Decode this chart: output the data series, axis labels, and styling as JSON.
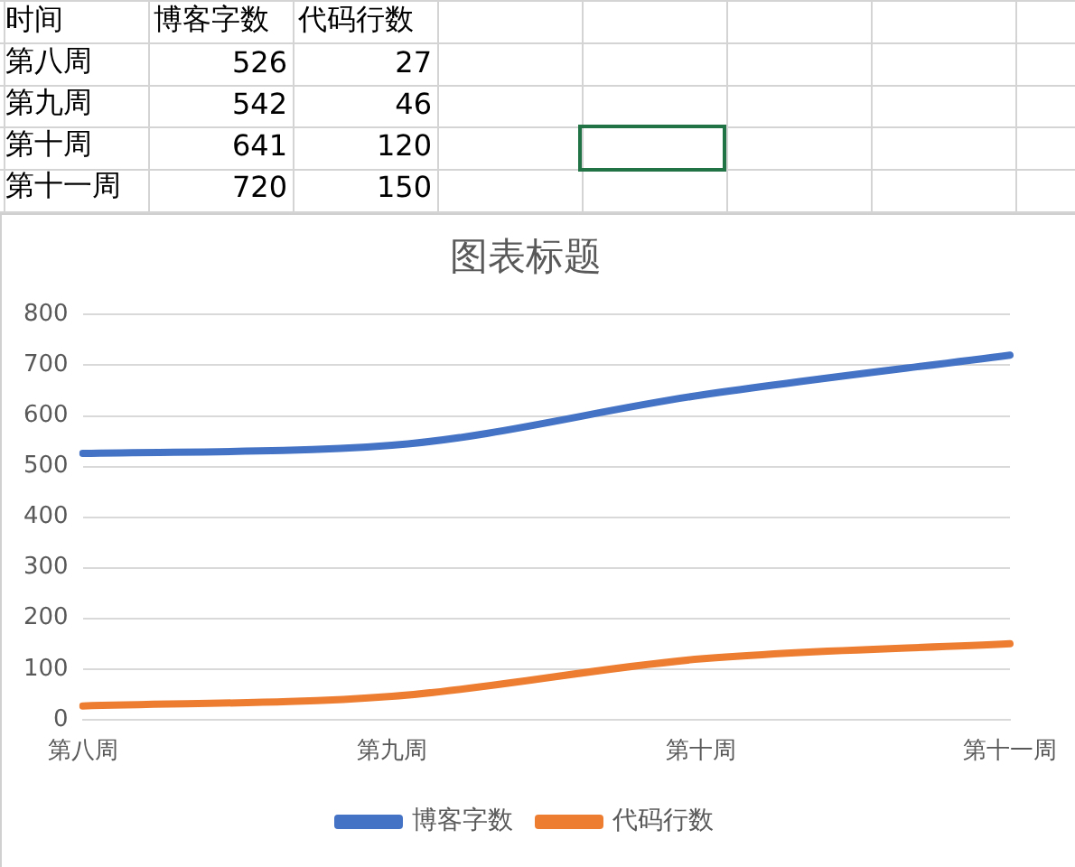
{
  "chart_data": [
    {
      "type": "other",
      "annotations": [
        "时间",
        "博客字数",
        "代码行数",
        "第八周",
        "526",
        "27",
        "第九周",
        "542",
        "46",
        "第十周",
        "641",
        "120",
        "第十一周",
        "720",
        "150"
      ]
    },
    {
      "type": "line",
      "title": "图表标题",
      "categories": [
        "第八周",
        "第九周",
        "第十周",
        "第十一周"
      ],
      "series": [
        {
          "name": "博客字数",
          "color": "#4472c4",
          "values": [
            526,
            542,
            641,
            720
          ]
        },
        {
          "name": "代码行数",
          "color": "#ed7d31",
          "values": [
            27,
            46,
            120,
            150
          ]
        }
      ],
      "ylim": [
        0,
        800
      ],
      "yticks": [
        0,
        100,
        200,
        300,
        400,
        500,
        600,
        700,
        800
      ],
      "grid": "y",
      "legend": "bottom",
      "marker": "none"
    }
  ]
}
